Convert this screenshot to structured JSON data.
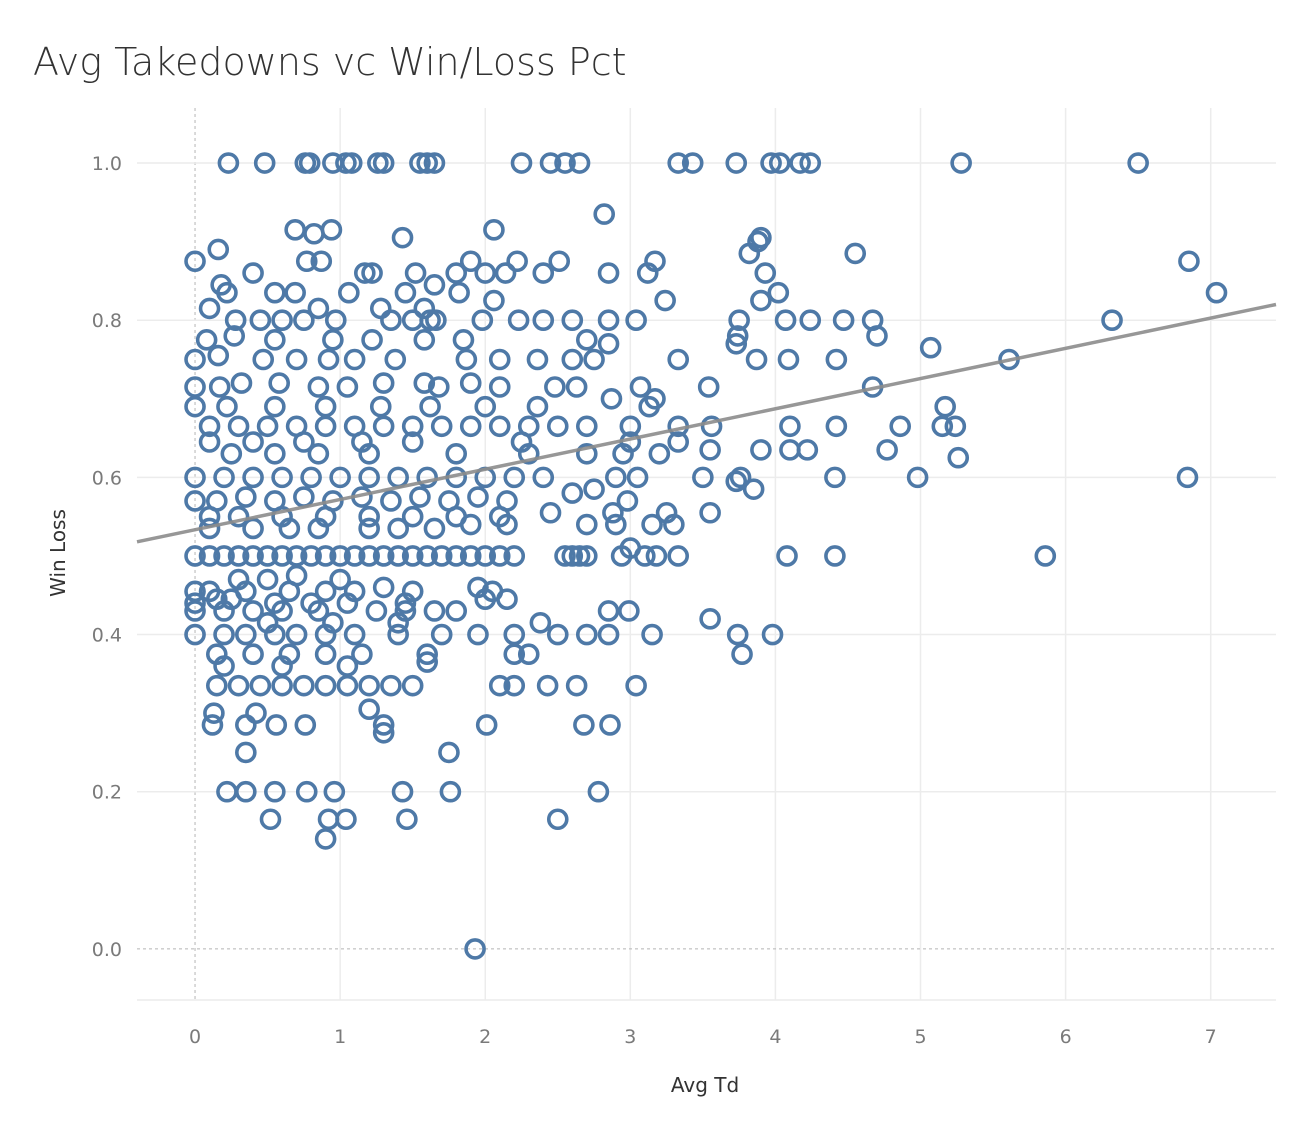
{
  "chart_data": {
    "type": "scatter",
    "title": "Avg Takedowns vc Win/Loss Pct",
    "xlabel": "Avg Td",
    "ylabel": "Win Loss",
    "xlim": [
      -0.4,
      7.45
    ],
    "ylim": [
      -0.065,
      1.07
    ],
    "x_ticks": [
      0,
      1,
      2,
      3,
      4,
      5,
      6,
      7
    ],
    "y_ticks": [
      "0.0",
      "0.2",
      "0.4",
      "0.6",
      "0.8",
      "1.0"
    ],
    "grid": true,
    "marker": "hollow-circle",
    "colors": {
      "points": "#4e79a7",
      "trend": "#8c8c8c",
      "grid": "#ececec",
      "zero_line": "#b5b5b5"
    },
    "trend_line": {
      "x": [
        -0.4,
        7.45
      ],
      "y": [
        0.518,
        0.82
      ]
    },
    "points": [
      [
        0.23,
        1.0
      ],
      [
        0.48,
        1.0
      ],
      [
        0.76,
        1.0
      ],
      [
        0.79,
        1.0
      ],
      [
        0.95,
        1.0
      ],
      [
        1.04,
        1.0
      ],
      [
        1.08,
        1.0
      ],
      [
        1.26,
        1.0
      ],
      [
        1.3,
        1.0
      ],
      [
        1.55,
        1.0
      ],
      [
        1.6,
        1.0
      ],
      [
        1.65,
        1.0
      ],
      [
        2.25,
        1.0
      ],
      [
        2.45,
        1.0
      ],
      [
        2.55,
        1.0
      ],
      [
        2.65,
        1.0
      ],
      [
        3.33,
        1.0
      ],
      [
        3.43,
        1.0
      ],
      [
        3.73,
        1.0
      ],
      [
        3.97,
        1.0
      ],
      [
        4.03,
        1.0
      ],
      [
        4.17,
        1.0
      ],
      [
        4.24,
        1.0
      ],
      [
        5.28,
        1.0
      ],
      [
        6.5,
        1.0
      ],
      [
        2.82,
        0.935
      ],
      [
        0.69,
        0.915
      ],
      [
        0.82,
        0.91
      ],
      [
        0.94,
        0.915
      ],
      [
        1.43,
        0.905
      ],
      [
        2.06,
        0.915
      ],
      [
        3.9,
        0.905
      ],
      [
        3.88,
        0.9
      ],
      [
        3.82,
        0.885
      ],
      [
        4.55,
        0.885
      ],
      [
        0.77,
        0.875
      ],
      [
        0.87,
        0.875
      ],
      [
        1.9,
        0.875
      ],
      [
        2.22,
        0.875
      ],
      [
        2.51,
        0.875
      ],
      [
        6.85,
        0.875
      ],
      [
        3.17,
        0.875
      ],
      [
        0.0,
        0.875
      ],
      [
        0.16,
        0.89
      ],
      [
        0.4,
        0.86
      ],
      [
        1.17,
        0.86
      ],
      [
        1.22,
        0.86
      ],
      [
        1.52,
        0.86
      ],
      [
        1.8,
        0.86
      ],
      [
        2.0,
        0.86
      ],
      [
        2.14,
        0.86
      ],
      [
        2.4,
        0.86
      ],
      [
        2.85,
        0.86
      ],
      [
        3.12,
        0.86
      ],
      [
        3.93,
        0.86
      ],
      [
        7.04,
        0.835
      ],
      [
        0.18,
        0.845
      ],
      [
        0.22,
        0.835
      ],
      [
        0.55,
        0.835
      ],
      [
        0.69,
        0.835
      ],
      [
        1.06,
        0.835
      ],
      [
        1.45,
        0.835
      ],
      [
        1.65,
        0.845
      ],
      [
        1.82,
        0.835
      ],
      [
        2.06,
        0.825
      ],
      [
        3.24,
        0.825
      ],
      [
        4.02,
        0.835
      ],
      [
        3.9,
        0.825
      ],
      [
        0.1,
        0.815
      ],
      [
        0.85,
        0.815
      ],
      [
        1.28,
        0.815
      ],
      [
        1.58,
        0.815
      ],
      [
        1.62,
        0.8
      ],
      [
        0.28,
        0.8
      ],
      [
        0.45,
        0.8
      ],
      [
        0.6,
        0.8
      ],
      [
        0.75,
        0.8
      ],
      [
        0.97,
        0.8
      ],
      [
        1.35,
        0.8
      ],
      [
        1.5,
        0.8
      ],
      [
        1.66,
        0.8
      ],
      [
        1.98,
        0.8
      ],
      [
        2.23,
        0.8
      ],
      [
        2.4,
        0.8
      ],
      [
        2.6,
        0.8
      ],
      [
        2.85,
        0.8
      ],
      [
        3.04,
        0.8
      ],
      [
        3.75,
        0.8
      ],
      [
        4.07,
        0.8
      ],
      [
        4.24,
        0.8
      ],
      [
        4.47,
        0.8
      ],
      [
        4.67,
        0.8
      ],
      [
        6.32,
        0.8
      ],
      [
        0.08,
        0.775
      ],
      [
        0.27,
        0.78
      ],
      [
        0.55,
        0.775
      ],
      [
        0.95,
        0.775
      ],
      [
        1.22,
        0.775
      ],
      [
        1.58,
        0.775
      ],
      [
        1.85,
        0.775
      ],
      [
        2.7,
        0.775
      ],
      [
        2.85,
        0.77
      ],
      [
        3.74,
        0.78
      ],
      [
        3.73,
        0.77
      ],
      [
        4.7,
        0.78
      ],
      [
        5.07,
        0.765
      ],
      [
        0.0,
        0.75
      ],
      [
        0.16,
        0.755
      ],
      [
        0.47,
        0.75
      ],
      [
        0.7,
        0.75
      ],
      [
        0.92,
        0.75
      ],
      [
        1.1,
        0.75
      ],
      [
        1.38,
        0.75
      ],
      [
        1.87,
        0.75
      ],
      [
        2.1,
        0.75
      ],
      [
        2.36,
        0.75
      ],
      [
        2.6,
        0.75
      ],
      [
        2.75,
        0.75
      ],
      [
        3.33,
        0.75
      ],
      [
        3.87,
        0.75
      ],
      [
        4.09,
        0.75
      ],
      [
        4.42,
        0.75
      ],
      [
        5.61,
        0.75
      ],
      [
        0.0,
        0.715
      ],
      [
        0.17,
        0.715
      ],
      [
        0.32,
        0.72
      ],
      [
        0.58,
        0.72
      ],
      [
        0.85,
        0.715
      ],
      [
        1.05,
        0.715
      ],
      [
        1.3,
        0.72
      ],
      [
        1.58,
        0.72
      ],
      [
        1.68,
        0.715
      ],
      [
        1.9,
        0.72
      ],
      [
        2.1,
        0.715
      ],
      [
        2.48,
        0.715
      ],
      [
        2.63,
        0.715
      ],
      [
        3.07,
        0.715
      ],
      [
        3.54,
        0.715
      ],
      [
        4.67,
        0.715
      ],
      [
        0.0,
        0.69
      ],
      [
        0.22,
        0.69
      ],
      [
        0.55,
        0.69
      ],
      [
        0.9,
        0.69
      ],
      [
        1.28,
        0.69
      ],
      [
        1.62,
        0.69
      ],
      [
        2.0,
        0.69
      ],
      [
        2.36,
        0.69
      ],
      [
        2.87,
        0.7
      ],
      [
        3.13,
        0.69
      ],
      [
        3.17,
        0.7
      ],
      [
        5.17,
        0.69
      ],
      [
        0.1,
        0.665
      ],
      [
        0.3,
        0.665
      ],
      [
        0.5,
        0.665
      ],
      [
        0.7,
        0.665
      ],
      [
        0.9,
        0.665
      ],
      [
        1.1,
        0.665
      ],
      [
        1.3,
        0.665
      ],
      [
        1.5,
        0.665
      ],
      [
        1.7,
        0.665
      ],
      [
        1.9,
        0.665
      ],
      [
        2.1,
        0.665
      ],
      [
        2.3,
        0.665
      ],
      [
        2.5,
        0.665
      ],
      [
        2.7,
        0.665
      ],
      [
        3.0,
        0.665
      ],
      [
        3.33,
        0.665
      ],
      [
        3.56,
        0.665
      ],
      [
        4.1,
        0.665
      ],
      [
        4.42,
        0.665
      ],
      [
        4.86,
        0.665
      ],
      [
        5.15,
        0.665
      ],
      [
        5.24,
        0.665
      ],
      [
        0.1,
        0.645
      ],
      [
        0.4,
        0.645
      ],
      [
        0.75,
        0.645
      ],
      [
        1.15,
        0.645
      ],
      [
        1.5,
        0.645
      ],
      [
        2.25,
        0.645
      ],
      [
        3.0,
        0.645
      ],
      [
        3.33,
        0.645
      ],
      [
        0.25,
        0.63
      ],
      [
        0.55,
        0.63
      ],
      [
        0.85,
        0.63
      ],
      [
        1.2,
        0.63
      ],
      [
        1.8,
        0.63
      ],
      [
        2.3,
        0.63
      ],
      [
        2.7,
        0.63
      ],
      [
        2.95,
        0.63
      ],
      [
        3.2,
        0.63
      ],
      [
        3.55,
        0.635
      ],
      [
        3.9,
        0.635
      ],
      [
        4.1,
        0.635
      ],
      [
        4.22,
        0.635
      ],
      [
        4.77,
        0.635
      ],
      [
        5.26,
        0.625
      ],
      [
        0.0,
        0.6
      ],
      [
        0.2,
        0.6
      ],
      [
        0.4,
        0.6
      ],
      [
        0.6,
        0.6
      ],
      [
        0.8,
        0.6
      ],
      [
        1.0,
        0.6
      ],
      [
        1.2,
        0.6
      ],
      [
        1.4,
        0.6
      ],
      [
        1.6,
        0.6
      ],
      [
        1.8,
        0.6
      ],
      [
        2.0,
        0.6
      ],
      [
        2.2,
        0.6
      ],
      [
        2.4,
        0.6
      ],
      [
        2.9,
        0.6
      ],
      [
        3.05,
        0.6
      ],
      [
        3.5,
        0.6
      ],
      [
        3.76,
        0.6
      ],
      [
        3.73,
        0.595
      ],
      [
        4.41,
        0.6
      ],
      [
        4.98,
        0.6
      ],
      [
        6.84,
        0.6
      ],
      [
        0.0,
        0.57
      ],
      [
        0.15,
        0.57
      ],
      [
        0.35,
        0.575
      ],
      [
        0.55,
        0.57
      ],
      [
        0.75,
        0.575
      ],
      [
        0.95,
        0.57
      ],
      [
        1.15,
        0.575
      ],
      [
        1.35,
        0.57
      ],
      [
        1.55,
        0.575
      ],
      [
        1.75,
        0.57
      ],
      [
        1.95,
        0.575
      ],
      [
        2.15,
        0.57
      ],
      [
        2.6,
        0.58
      ],
      [
        2.75,
        0.585
      ],
      [
        3.85,
        0.585
      ],
      [
        2.98,
        0.57
      ],
      [
        2.88,
        0.555
      ],
      [
        3.25,
        0.555
      ],
      [
        3.55,
        0.555
      ],
      [
        0.1,
        0.55
      ],
      [
        0.3,
        0.55
      ],
      [
        0.6,
        0.55
      ],
      [
        0.9,
        0.55
      ],
      [
        1.2,
        0.55
      ],
      [
        1.5,
        0.55
      ],
      [
        1.8,
        0.55
      ],
      [
        2.1,
        0.55
      ],
      [
        2.45,
        0.555
      ],
      [
        0.1,
        0.535
      ],
      [
        0.4,
        0.535
      ],
      [
        0.65,
        0.535
      ],
      [
        0.85,
        0.535
      ],
      [
        1.2,
        0.535
      ],
      [
        1.4,
        0.535
      ],
      [
        1.65,
        0.535
      ],
      [
        1.9,
        0.54
      ],
      [
        2.15,
        0.54
      ],
      [
        2.7,
        0.54
      ],
      [
        2.9,
        0.54
      ],
      [
        3.15,
        0.54
      ],
      [
        3.3,
        0.54
      ],
      [
        3.0,
        0.51
      ],
      [
        0.0,
        0.5
      ],
      [
        0.1,
        0.5
      ],
      [
        0.2,
        0.5
      ],
      [
        0.3,
        0.5
      ],
      [
        0.4,
        0.5
      ],
      [
        0.5,
        0.5
      ],
      [
        0.6,
        0.5
      ],
      [
        0.7,
        0.5
      ],
      [
        0.8,
        0.5
      ],
      [
        0.9,
        0.5
      ],
      [
        1.0,
        0.5
      ],
      [
        1.1,
        0.5
      ],
      [
        1.2,
        0.5
      ],
      [
        1.3,
        0.5
      ],
      [
        1.4,
        0.5
      ],
      [
        1.5,
        0.5
      ],
      [
        1.6,
        0.5
      ],
      [
        1.7,
        0.5
      ],
      [
        1.8,
        0.5
      ],
      [
        1.9,
        0.5
      ],
      [
        2.0,
        0.5
      ],
      [
        2.1,
        0.5
      ],
      [
        2.2,
        0.5
      ],
      [
        2.55,
        0.5
      ],
      [
        2.6,
        0.5
      ],
      [
        2.65,
        0.5
      ],
      [
        2.7,
        0.5
      ],
      [
        2.94,
        0.5
      ],
      [
        3.1,
        0.5
      ],
      [
        3.18,
        0.5
      ],
      [
        3.33,
        0.5
      ],
      [
        4.08,
        0.5
      ],
      [
        4.41,
        0.5
      ],
      [
        5.86,
        0.5
      ],
      [
        0.3,
        0.47
      ],
      [
        0.5,
        0.47
      ],
      [
        0.7,
        0.475
      ],
      [
        1.0,
        0.47
      ],
      [
        1.3,
        0.46
      ],
      [
        1.95,
        0.46
      ],
      [
        0.0,
        0.455
      ],
      [
        0.1,
        0.455
      ],
      [
        0.35,
        0.455
      ],
      [
        0.65,
        0.455
      ],
      [
        0.9,
        0.455
      ],
      [
        1.1,
        0.455
      ],
      [
        1.5,
        0.455
      ],
      [
        2.05,
        0.455
      ],
      [
        0.0,
        0.44
      ],
      [
        0.15,
        0.445
      ],
      [
        0.25,
        0.445
      ],
      [
        0.55,
        0.44
      ],
      [
        0.8,
        0.44
      ],
      [
        1.05,
        0.44
      ],
      [
        1.45,
        0.44
      ],
      [
        2.0,
        0.445
      ],
      [
        2.15,
        0.445
      ],
      [
        0.0,
        0.43
      ],
      [
        0.2,
        0.43
      ],
      [
        0.4,
        0.43
      ],
      [
        0.6,
        0.43
      ],
      [
        0.85,
        0.43
      ],
      [
        1.25,
        0.43
      ],
      [
        1.45,
        0.43
      ],
      [
        1.65,
        0.43
      ],
      [
        1.8,
        0.43
      ],
      [
        2.85,
        0.43
      ],
      [
        2.99,
        0.43
      ],
      [
        0.5,
        0.415
      ],
      [
        0.95,
        0.415
      ],
      [
        1.4,
        0.415
      ],
      [
        2.38,
        0.415
      ],
      [
        3.55,
        0.42
      ],
      [
        0.0,
        0.4
      ],
      [
        0.2,
        0.4
      ],
      [
        0.35,
        0.4
      ],
      [
        0.55,
        0.4
      ],
      [
        0.7,
        0.4
      ],
      [
        0.9,
        0.4
      ],
      [
        1.1,
        0.4
      ],
      [
        1.4,
        0.4
      ],
      [
        1.7,
        0.4
      ],
      [
        1.95,
        0.4
      ],
      [
        2.2,
        0.4
      ],
      [
        2.5,
        0.4
      ],
      [
        2.7,
        0.4
      ],
      [
        2.85,
        0.4
      ],
      [
        3.15,
        0.4
      ],
      [
        3.74,
        0.4
      ],
      [
        3.98,
        0.4
      ],
      [
        0.15,
        0.375
      ],
      [
        0.4,
        0.375
      ],
      [
        0.65,
        0.375
      ],
      [
        0.9,
        0.375
      ],
      [
        1.15,
        0.375
      ],
      [
        1.6,
        0.375
      ],
      [
        2.2,
        0.375
      ],
      [
        2.3,
        0.375
      ],
      [
        3.77,
        0.375
      ],
      [
        0.2,
        0.36
      ],
      [
        0.6,
        0.36
      ],
      [
        1.05,
        0.36
      ],
      [
        1.6,
        0.365
      ],
      [
        0.15,
        0.335
      ],
      [
        0.3,
        0.335
      ],
      [
        0.45,
        0.335
      ],
      [
        0.6,
        0.335
      ],
      [
        0.75,
        0.335
      ],
      [
        0.9,
        0.335
      ],
      [
        1.05,
        0.335
      ],
      [
        1.2,
        0.335
      ],
      [
        1.35,
        0.335
      ],
      [
        1.5,
        0.335
      ],
      [
        2.1,
        0.335
      ],
      [
        2.2,
        0.335
      ],
      [
        2.43,
        0.335
      ],
      [
        2.63,
        0.335
      ],
      [
        3.04,
        0.335
      ],
      [
        0.13,
        0.3
      ],
      [
        0.42,
        0.3
      ],
      [
        1.2,
        0.305
      ],
      [
        1.3,
        0.285
      ],
      [
        0.12,
        0.285
      ],
      [
        0.35,
        0.285
      ],
      [
        0.56,
        0.285
      ],
      [
        0.76,
        0.285
      ],
      [
        2.01,
        0.285
      ],
      [
        2.68,
        0.285
      ],
      [
        2.86,
        0.285
      ],
      [
        1.3,
        0.275
      ],
      [
        0.35,
        0.25
      ],
      [
        1.75,
        0.25
      ],
      [
        0.22,
        0.2
      ],
      [
        0.35,
        0.2
      ],
      [
        0.55,
        0.2
      ],
      [
        0.77,
        0.2
      ],
      [
        0.96,
        0.2
      ],
      [
        1.43,
        0.2
      ],
      [
        1.76,
        0.2
      ],
      [
        2.78,
        0.2
      ],
      [
        0.52,
        0.165
      ],
      [
        0.92,
        0.165
      ],
      [
        1.04,
        0.165
      ],
      [
        1.46,
        0.165
      ],
      [
        2.5,
        0.165
      ],
      [
        0.9,
        0.14
      ],
      [
        1.93,
        0.0
      ]
    ]
  }
}
